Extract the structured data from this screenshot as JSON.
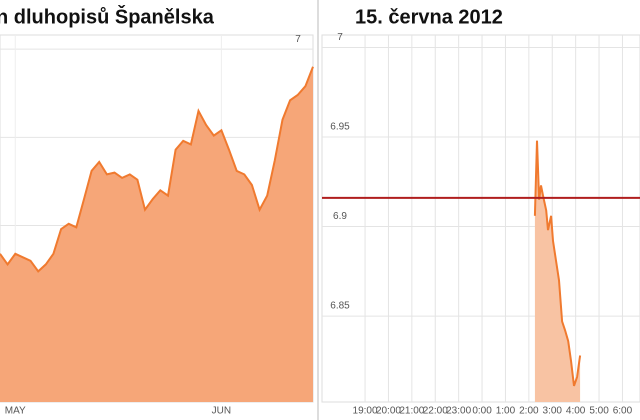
{
  "chart_data": [
    {
      "type": "area",
      "title": "n dluhopisů Španělska",
      "categories": [
        null,
        null,
        "MAY",
        null,
        null,
        null,
        null,
        null,
        null,
        null,
        null,
        null,
        null,
        null,
        null,
        null,
        null,
        null,
        null,
        null,
        null,
        null,
        null,
        null,
        null,
        null,
        null,
        null,
        null,
        "JUN",
        null,
        null,
        null,
        null,
        null,
        null,
        null,
        null,
        null,
        null,
        null,
        null
      ],
      "values": [
        5.84,
        5.78,
        5.84,
        5.82,
        5.8,
        5.74,
        5.78,
        5.84,
        5.98,
        6.01,
        5.99,
        6.15,
        6.31,
        6.36,
        6.29,
        6.3,
        6.27,
        6.29,
        6.26,
        6.09,
        6.15,
        6.2,
        6.17,
        6.43,
        6.48,
        6.46,
        6.65,
        6.57,
        6.51,
        6.54,
        6.43,
        6.31,
        6.29,
        6.23,
        6.09,
        6.17,
        6.37,
        6.6,
        6.71,
        6.74,
        6.79,
        6.9
      ],
      "color": "#f07a2f",
      "fill": "#f6a678",
      "ylim": [
        5.0,
        7.08
      ],
      "yticks": [
        5.5,
        6,
        6.5,
        7
      ],
      "grid": true
    },
    {
      "type": "area",
      "title": "15. června 2012",
      "x": [
        26.26,
        26.35,
        26.44,
        26.52,
        26.61,
        26.74,
        26.82,
        26.95,
        27.03,
        27.16,
        27.29,
        27.42,
        27.55,
        27.68,
        27.8,
        27.93,
        28.06,
        28.19
      ],
      "values": [
        6.906,
        6.948,
        6.915,
        6.923,
        6.917,
        6.909,
        6.898,
        6.906,
        6.892,
        6.881,
        6.87,
        6.847,
        6.842,
        6.836,
        6.825,
        6.811,
        6.816,
        6.828
      ],
      "color": "#f07a2f",
      "fill": "#f8c3a3",
      "xlim": [
        17.16,
        30.75
      ],
      "xticks": [
        {
          "value": 19,
          "label": "19:00"
        },
        {
          "value": 20,
          "label": "20:00"
        },
        {
          "value": 21,
          "label": "21:00"
        },
        {
          "value": 22,
          "label": "22:00"
        },
        {
          "value": 23,
          "label": "23:00"
        },
        {
          "value": 24,
          "label": "0:00"
        },
        {
          "value": 25,
          "label": "1:00"
        },
        {
          "value": 26,
          "label": "2:00"
        },
        {
          "value": 27,
          "label": "3:00"
        },
        {
          "value": 28,
          "label": "4:00"
        },
        {
          "value": 29,
          "label": "5:00"
        },
        {
          "value": 30,
          "label": "6:00"
        }
      ],
      "ylim": [
        6.802,
        7.007
      ],
      "yticks": [
        6.85,
        6.9,
        6.95,
        7
      ],
      "grid": true,
      "reference_line": 6.916,
      "reference_color": "#b01e1e"
    }
  ]
}
